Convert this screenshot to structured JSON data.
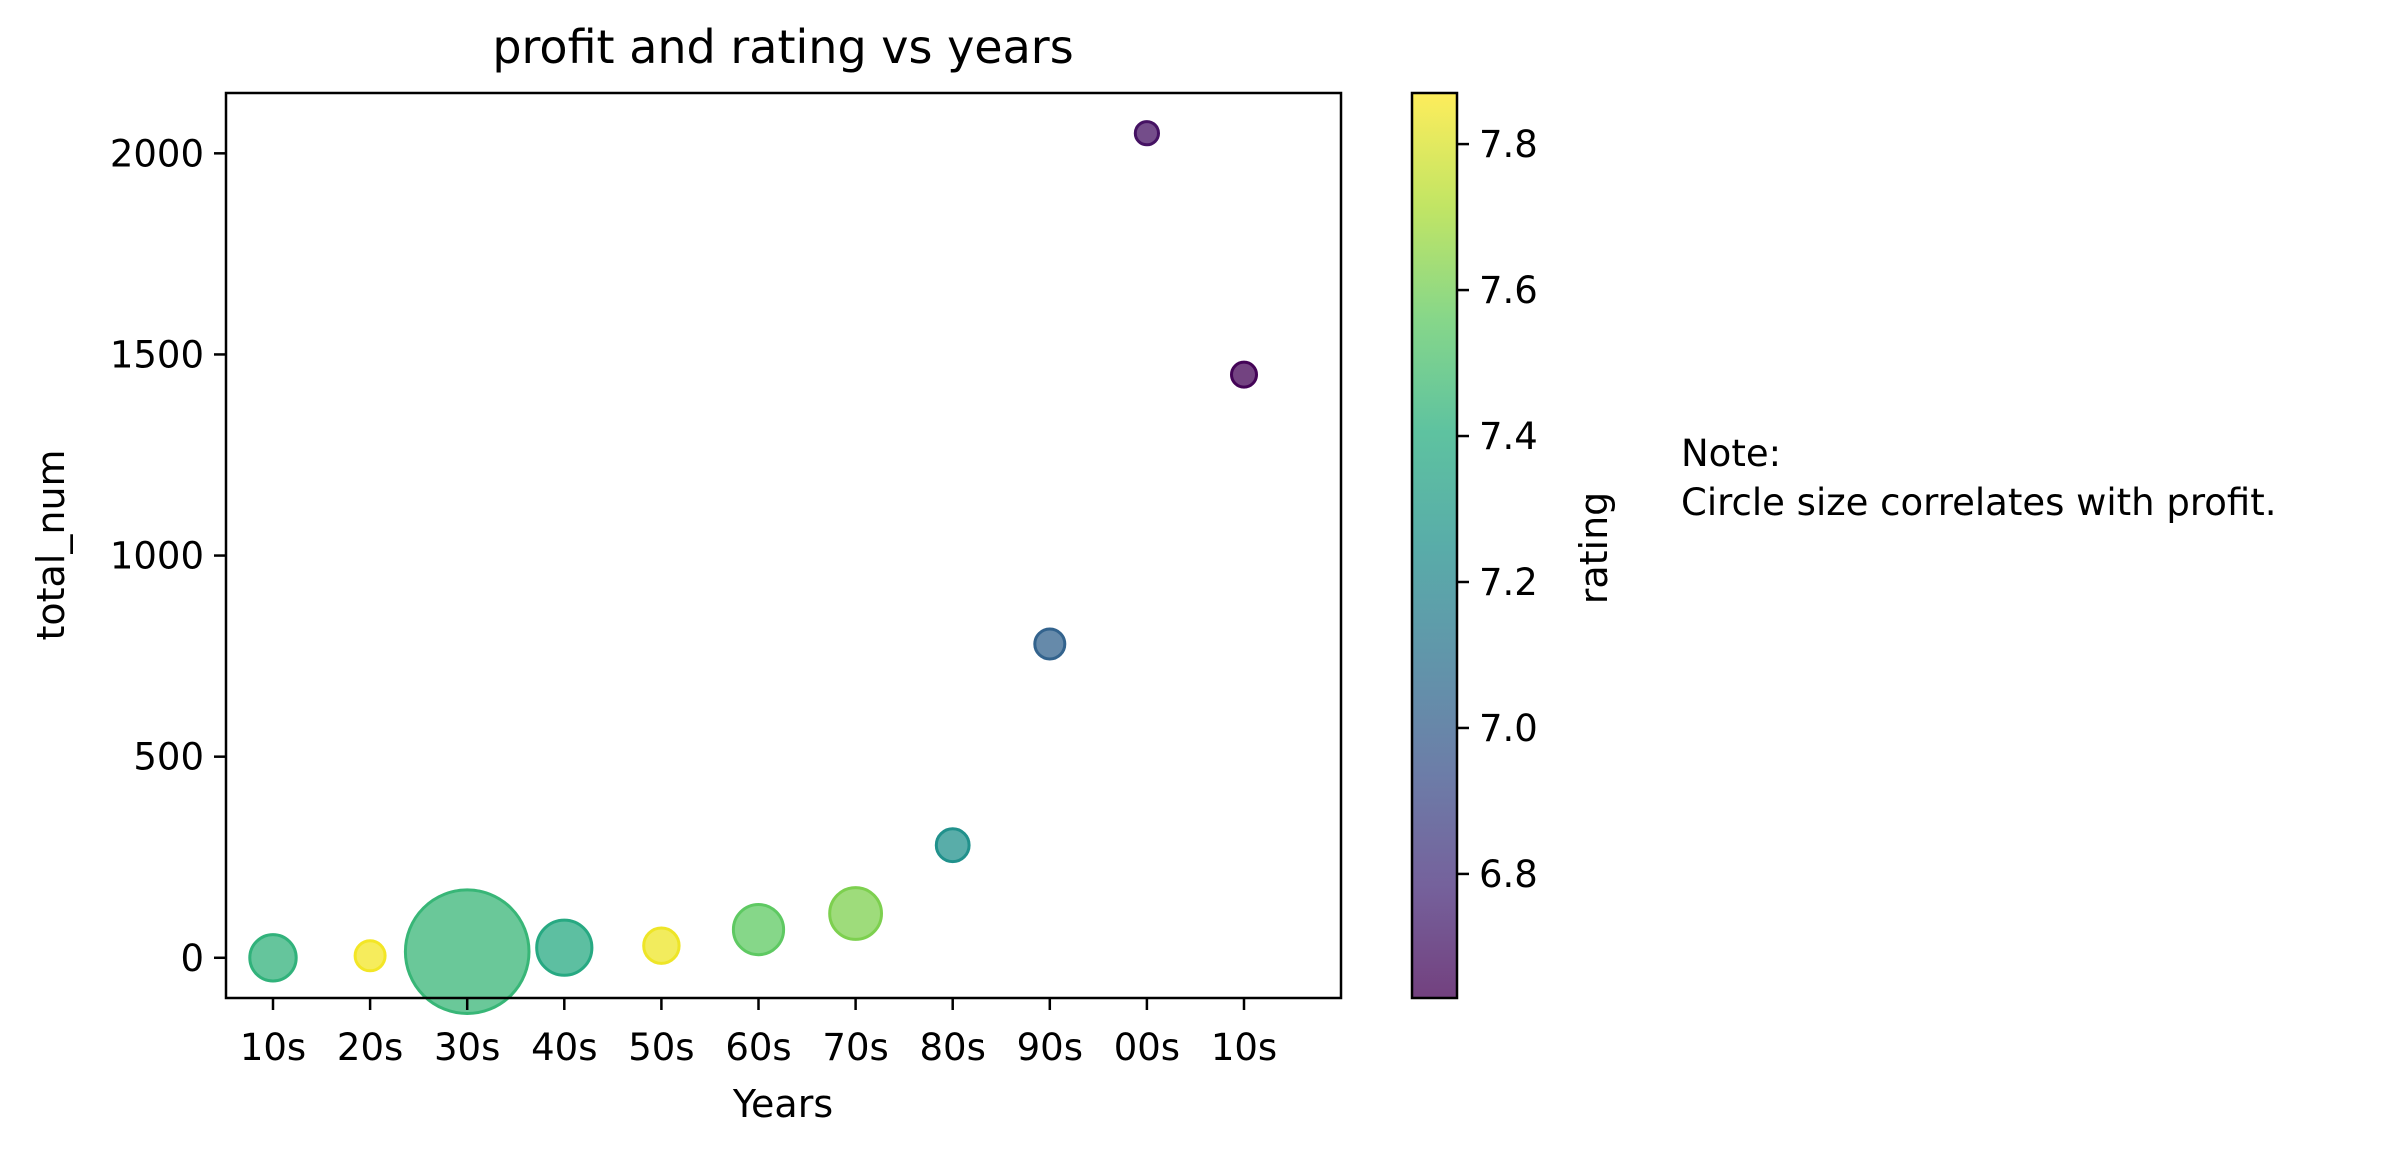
{
  "chart_data": {
    "type": "scatter",
    "title": "profit and rating vs years",
    "xlabel": "Years",
    "ylabel": "total_num",
    "categories": [
      "10s",
      "20s",
      "30s",
      "40s",
      "50s",
      "60s",
      "70s",
      "80s",
      "90s",
      "00s",
      "10s"
    ],
    "total_num": [
      0,
      5,
      15,
      25,
      30,
      70,
      110,
      280,
      780,
      2050,
      1450
    ],
    "rating": [
      7.43,
      7.85,
      7.45,
      7.38,
      7.84,
      7.56,
      7.62,
      7.25,
      7.02,
      6.69,
      6.64
    ],
    "profit_relative": [
      0.12,
      0.05,
      0.85,
      0.17,
      0.07,
      0.14,
      0.15,
      0.06,
      0.05,
      0.03,
      0.035
    ],
    "yticks": [
      0,
      500,
      1000,
      1500,
      2000
    ],
    "ylim": [
      -100,
      2150
    ],
    "colorbar": {
      "label": "rating",
      "range": [
        6.63,
        7.87
      ],
      "ticks": [
        "6.8",
        "7.0",
        "7.2",
        "7.4",
        "7.6",
        "7.8"
      ],
      "colormap": "viridis",
      "alpha": 0.75
    },
    "grid": false,
    "note": {
      "line1": "Note:",
      "line2": "Circle size correlates with profit."
    }
  }
}
